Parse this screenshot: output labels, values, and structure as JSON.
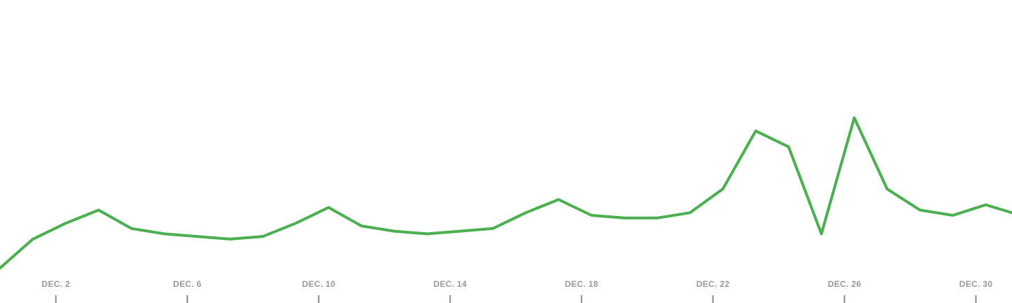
{
  "chart_data": {
    "type": "line",
    "title": "",
    "xlabel": "",
    "ylabel": "",
    "grid": false,
    "legend": "none",
    "x_tick_labels": [
      "DEC. 2",
      "DEC. 6",
      "DEC. 10",
      "DEC. 14",
      "DEC. 18",
      "DEC. 22",
      "DEC. 26",
      "DEC. 30"
    ],
    "x_tick_days": [
      2,
      6,
      10,
      14,
      18,
      22,
      26,
      30
    ],
    "xlim": [
      0.3,
      31.1
    ],
    "ylim": [
      0,
      100
    ],
    "series": [
      {
        "color": "#4caf50",
        "x": [
          0.3,
          1.3,
          2.3,
          3.3,
          4.3,
          5.3,
          6.3,
          7.3,
          8.3,
          9.3,
          10.3,
          11.3,
          12.3,
          13.3,
          14.3,
          15.3,
          16.3,
          17.3,
          18.3,
          19.3,
          20.3,
          21.3,
          22.3,
          23.3,
          24.3,
          25.3,
          26.3,
          27.3,
          28.3,
          29.3,
          30.3,
          31.1
        ],
        "values": [
          1,
          12,
          18,
          23,
          16,
          14,
          13,
          12,
          13,
          18,
          24,
          17,
          15,
          14,
          15,
          16,
          22,
          27,
          21,
          20,
          20,
          22,
          31,
          53,
          47,
          14,
          58,
          31,
          23,
          21,
          25,
          22
        ]
      }
    ]
  }
}
